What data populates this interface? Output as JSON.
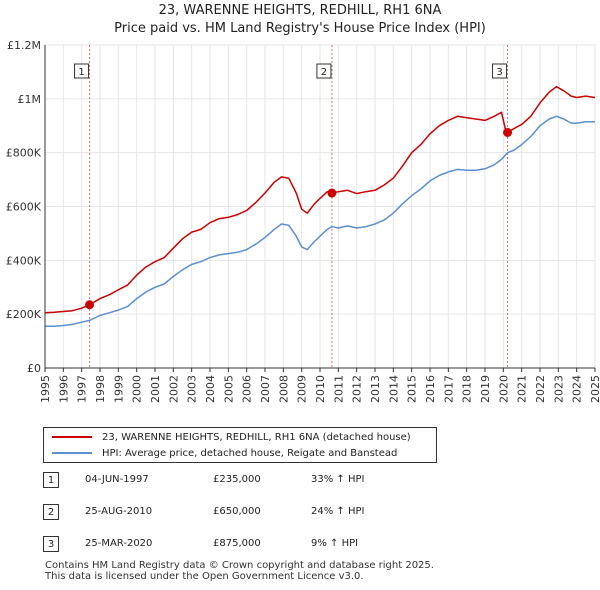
{
  "header": {
    "title_line1": "23, WARENNE HEIGHTS, REDHILL, RH1 6NA",
    "title_line2": "Price paid vs. HM Land Registry's House Price Index (HPI)"
  },
  "chart_data": {
    "type": "line",
    "title": "23, WARENNE HEIGHTS, REDHILL, RH1 6NA — Price paid vs. HM Land Registry's House Price Index (HPI)",
    "xlabel": "",
    "ylabel": "",
    "xlim": [
      1995,
      2025
    ],
    "ylim": [
      0,
      1200000
    ],
    "x_ticks": [
      "1995",
      "1996",
      "1997",
      "1998",
      "1999",
      "2000",
      "2001",
      "2002",
      "2003",
      "2004",
      "2005",
      "2006",
      "2007",
      "2008",
      "2009",
      "2010",
      "2011",
      "2012",
      "2013",
      "2014",
      "2015",
      "2016",
      "2017",
      "2018",
      "2019",
      "2020",
      "2021",
      "2022",
      "2023",
      "2024",
      "2025"
    ],
    "y_ticks": [
      {
        "value": 0,
        "label": "£0"
      },
      {
        "value": 200000,
        "label": "£200K"
      },
      {
        "value": 400000,
        "label": "£400K"
      },
      {
        "value": 600000,
        "label": "£600K"
      },
      {
        "value": 800000,
        "label": "£800K"
      },
      {
        "value": 1000000,
        "label": "£1M"
      },
      {
        "value": 1200000,
        "label": "£1.2M"
      }
    ],
    "grid": true,
    "colors": {
      "property": "#cc0000",
      "hpi": "#5b8fd4",
      "marker_line": "#e06666",
      "axis": "#333333",
      "grid": "#e6e6e6"
    },
    "series": [
      {
        "name": "23, WARENNE HEIGHTS, REDHILL, RH1 6NA (detached house)",
        "color": "#cc0000",
        "points": [
          [
            1995.0,
            205000
          ],
          [
            1995.5,
            207000
          ],
          [
            1996.0,
            210000
          ],
          [
            1996.5,
            213000
          ],
          [
            1997.0,
            222000
          ],
          [
            1997.43,
            235000
          ],
          [
            1998.0,
            258000
          ],
          [
            1998.5,
            272000
          ],
          [
            1999.0,
            290000
          ],
          [
            1999.5,
            308000
          ],
          [
            2000.0,
            345000
          ],
          [
            2000.5,
            375000
          ],
          [
            2001.0,
            395000
          ],
          [
            2001.5,
            410000
          ],
          [
            2002.0,
            445000
          ],
          [
            2002.5,
            480000
          ],
          [
            2003.0,
            505000
          ],
          [
            2003.5,
            515000
          ],
          [
            2004.0,
            540000
          ],
          [
            2004.5,
            555000
          ],
          [
            2005.0,
            560000
          ],
          [
            2005.5,
            570000
          ],
          [
            2006.0,
            585000
          ],
          [
            2006.5,
            615000
          ],
          [
            2007.0,
            650000
          ],
          [
            2007.5,
            690000
          ],
          [
            2007.9,
            710000
          ],
          [
            2008.3,
            705000
          ],
          [
            2008.7,
            650000
          ],
          [
            2009.0,
            590000
          ],
          [
            2009.3,
            575000
          ],
          [
            2009.7,
            610000
          ],
          [
            2010.0,
            630000
          ],
          [
            2010.4,
            655000
          ],
          [
            2010.65,
            650000
          ],
          [
            2011.0,
            655000
          ],
          [
            2011.5,
            660000
          ],
          [
            2012.0,
            648000
          ],
          [
            2012.5,
            655000
          ],
          [
            2013.0,
            660000
          ],
          [
            2013.5,
            680000
          ],
          [
            2014.0,
            705000
          ],
          [
            2014.5,
            750000
          ],
          [
            2015.0,
            800000
          ],
          [
            2015.5,
            830000
          ],
          [
            2016.0,
            870000
          ],
          [
            2016.5,
            900000
          ],
          [
            2017.0,
            920000
          ],
          [
            2017.5,
            935000
          ],
          [
            2018.0,
            930000
          ],
          [
            2018.5,
            925000
          ],
          [
            2019.0,
            920000
          ],
          [
            2019.5,
            935000
          ],
          [
            2019.9,
            950000
          ],
          [
            2020.1,
            890000
          ],
          [
            2020.23,
            875000
          ],
          [
            2020.6,
            890000
          ],
          [
            2021.0,
            905000
          ],
          [
            2021.5,
            935000
          ],
          [
            2022.0,
            985000
          ],
          [
            2022.5,
            1025000
          ],
          [
            2022.9,
            1045000
          ],
          [
            2023.3,
            1030000
          ],
          [
            2023.7,
            1010000
          ],
          [
            2024.0,
            1005000
          ],
          [
            2024.5,
            1010000
          ],
          [
            2025.0,
            1005000
          ]
        ]
      },
      {
        "name": "HPI: Average price, detached house, Reigate and Banstead",
        "color": "#5b8fd4",
        "points": [
          [
            1995.0,
            155000
          ],
          [
            1995.5,
            155000
          ],
          [
            1996.0,
            158000
          ],
          [
            1996.5,
            162000
          ],
          [
            1997.0,
            170000
          ],
          [
            1997.43,
            177000
          ],
          [
            1998.0,
            195000
          ],
          [
            1998.5,
            205000
          ],
          [
            1999.0,
            215000
          ],
          [
            1999.5,
            228000
          ],
          [
            2000.0,
            258000
          ],
          [
            2000.5,
            282000
          ],
          [
            2001.0,
            300000
          ],
          [
            2001.5,
            312000
          ],
          [
            2002.0,
            340000
          ],
          [
            2002.5,
            365000
          ],
          [
            2003.0,
            385000
          ],
          [
            2003.5,
            395000
          ],
          [
            2004.0,
            410000
          ],
          [
            2004.5,
            420000
          ],
          [
            2005.0,
            425000
          ],
          [
            2005.5,
            430000
          ],
          [
            2006.0,
            440000
          ],
          [
            2006.5,
            460000
          ],
          [
            2007.0,
            485000
          ],
          [
            2007.5,
            515000
          ],
          [
            2007.9,
            535000
          ],
          [
            2008.3,
            530000
          ],
          [
            2008.7,
            490000
          ],
          [
            2009.0,
            450000
          ],
          [
            2009.3,
            440000
          ],
          [
            2009.7,
            470000
          ],
          [
            2010.0,
            490000
          ],
          [
            2010.4,
            515000
          ],
          [
            2010.65,
            525000
          ],
          [
            2011.0,
            520000
          ],
          [
            2011.5,
            528000
          ],
          [
            2012.0,
            520000
          ],
          [
            2012.5,
            525000
          ],
          [
            2013.0,
            535000
          ],
          [
            2013.5,
            550000
          ],
          [
            2014.0,
            575000
          ],
          [
            2014.5,
            610000
          ],
          [
            2015.0,
            640000
          ],
          [
            2015.5,
            665000
          ],
          [
            2016.0,
            695000
          ],
          [
            2016.5,
            715000
          ],
          [
            2017.0,
            728000
          ],
          [
            2017.5,
            738000
          ],
          [
            2018.0,
            735000
          ],
          [
            2018.5,
            735000
          ],
          [
            2019.0,
            740000
          ],
          [
            2019.5,
            755000
          ],
          [
            2019.9,
            775000
          ],
          [
            2020.23,
            800000
          ],
          [
            2020.6,
            810000
          ],
          [
            2021.0,
            830000
          ],
          [
            2021.5,
            860000
          ],
          [
            2022.0,
            900000
          ],
          [
            2022.5,
            925000
          ],
          [
            2022.9,
            935000
          ],
          [
            2023.3,
            925000
          ],
          [
            2023.7,
            910000
          ],
          [
            2024.0,
            910000
          ],
          [
            2024.5,
            915000
          ],
          [
            2025.0,
            915000
          ]
        ]
      }
    ],
    "sales": [
      {
        "label": "1",
        "x": 1997.43,
        "price": 235000
      },
      {
        "label": "2",
        "x": 2010.65,
        "price": 650000
      },
      {
        "label": "3",
        "x": 2020.23,
        "price": 875000
      }
    ]
  },
  "legend": {
    "property_label": "23, WARENNE HEIGHTS, REDHILL, RH1 6NA (detached house)",
    "hpi_label": "HPI: Average price, detached house, Reigate and Banstead"
  },
  "transactions": [
    {
      "num": "1",
      "date": "04-JUN-1997",
      "price": "£235,000",
      "hpi": "33% ↑ HPI"
    },
    {
      "num": "2",
      "date": "25-AUG-2010",
      "price": "£650,000",
      "hpi": "24% ↑ HPI"
    },
    {
      "num": "3",
      "date": "25-MAR-2020",
      "price": "£875,000",
      "hpi": "9% ↑ HPI"
    }
  ],
  "footer": {
    "line1": "Contains HM Land Registry data © Crown copyright and database right 2025.",
    "line2": "This data is licensed under the Open Government Licence v3.0."
  }
}
